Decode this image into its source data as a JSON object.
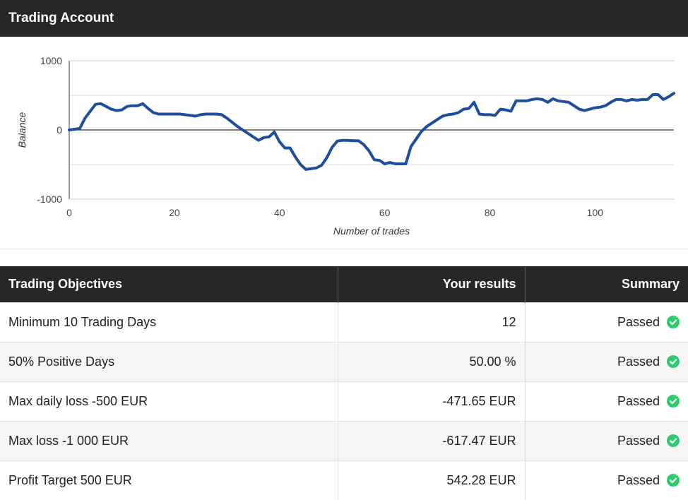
{
  "header": {
    "title": "Trading Account"
  },
  "chart_data": {
    "type": "line",
    "xlabel": "Number of trades",
    "ylabel": "Balance",
    "xlim": [
      0,
      115
    ],
    "ylim": [
      -1000,
      1000
    ],
    "xticks": [
      "0",
      "20",
      "40",
      "60",
      "80",
      "100"
    ],
    "yticks": [
      "1000",
      "0",
      "-1000"
    ],
    "grid": true,
    "line_color": "#1f4e9c",
    "series": [
      {
        "x": [
          0,
          1,
          2,
          3,
          4,
          5,
          6,
          7,
          8,
          9,
          10,
          11,
          12,
          13,
          14,
          15,
          16,
          17,
          18,
          19,
          20,
          21,
          22,
          23,
          24,
          25,
          26,
          27,
          28,
          29,
          30,
          31,
          32,
          33,
          34,
          35,
          36,
          37,
          38,
          39,
          40,
          41,
          42,
          43,
          44,
          45,
          46,
          47,
          48,
          49,
          50,
          51,
          52,
          53,
          54,
          55,
          56,
          57,
          58,
          59,
          60,
          61,
          62,
          63,
          64,
          65,
          66,
          67,
          68,
          69,
          70,
          71,
          72,
          73,
          74,
          75,
          76,
          77,
          78,
          79,
          80,
          81,
          82,
          83,
          84,
          85,
          86,
          87,
          88,
          89,
          90,
          91,
          92,
          93,
          94,
          95,
          96,
          97,
          98,
          99,
          100,
          101,
          102,
          103,
          104,
          105,
          106,
          107,
          108,
          109,
          110,
          111,
          112,
          113,
          114,
          115
        ],
        "y": [
          0,
          10,
          20,
          170,
          270,
          370,
          380,
          340,
          300,
          280,
          290,
          340,
          350,
          350,
          380,
          310,
          250,
          230,
          230,
          230,
          230,
          230,
          220,
          210,
          200,
          220,
          230,
          230,
          230,
          220,
          170,
          110,
          50,
          0,
          -50,
          -100,
          -150,
          -110,
          -100,
          -30,
          -170,
          -260,
          -260,
          -390,
          -500,
          -570,
          -560,
          -550,
          -510,
          -400,
          -250,
          -160,
          -150,
          -150,
          -155,
          -155,
          -210,
          -300,
          -430,
          -440,
          -490,
          -470,
          -490,
          -490,
          -490,
          -240,
          -130,
          -20,
          50,
          100,
          150,
          200,
          220,
          230,
          250,
          300,
          310,
          400,
          230,
          220,
          220,
          210,
          300,
          290,
          270,
          420,
          420,
          420,
          440,
          450,
          440,
          400,
          450,
          420,
          410,
          400,
          350,
          300,
          280,
          300,
          320,
          330,
          350,
          400,
          440,
          440,
          420,
          440,
          430,
          440,
          440,
          510,
          510,
          440,
          480,
          530
        ]
      }
    ]
  },
  "table": {
    "headers": [
      "Trading Objectives",
      "Your results",
      "Summary"
    ],
    "rows": [
      {
        "objective": "Minimum 10 Trading Days",
        "result": "12",
        "summary": "Passed"
      },
      {
        "objective": "50% Positive Days",
        "result": "50.00 %",
        "summary": "Passed"
      },
      {
        "objective": "Max daily loss -500 EUR",
        "result": "-471.65 EUR",
        "summary": "Passed"
      },
      {
        "objective": "Max loss -1 000 EUR",
        "result": "-617.47 EUR",
        "summary": "Passed"
      },
      {
        "objective": "Profit Target 500 EUR",
        "result": "542.28 EUR",
        "summary": "Passed"
      }
    ],
    "status_color": "#2ecc71",
    "status_icon": "check-circle-icon"
  }
}
